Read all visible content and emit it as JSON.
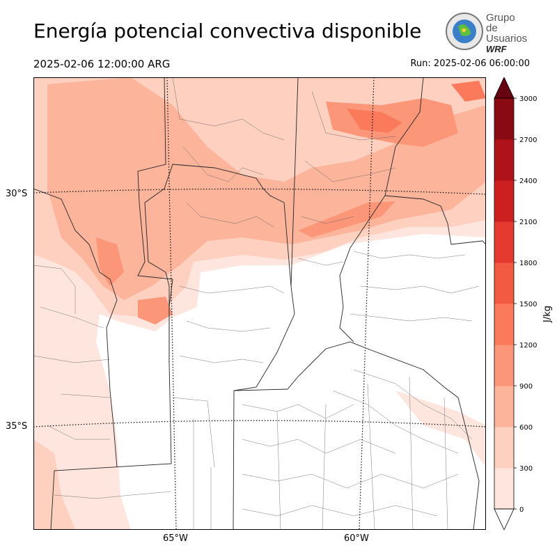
{
  "header": {
    "title": "Energía potencial convectiva disponible",
    "valid_time": "2025-02-06 12:00:00 ARG",
    "run": "Run: 2025-02-06 06:00:00"
  },
  "logo": {
    "line1": "Grupo de",
    "line2": "Usuarios",
    "line3": "WRF"
  },
  "map": {
    "lat_labels": [
      "30°S",
      "35°S"
    ],
    "lon_labels": [
      "65°W",
      "60°W"
    ]
  },
  "colorbar": {
    "label": "J/kg",
    "ticks": [
      "0",
      "300",
      "600",
      "900",
      "1200",
      "1500",
      "1800",
      "2100",
      "2400",
      "2700",
      "3000"
    ],
    "colors": [
      "#fee6de",
      "#fdd0c0",
      "#fcb49b",
      "#fc9679",
      "#fb7a5c",
      "#f25a41",
      "#e53a2f",
      "#cc1f1f",
      "#b01219",
      "#8a0a13",
      "#660510"
    ]
  }
}
